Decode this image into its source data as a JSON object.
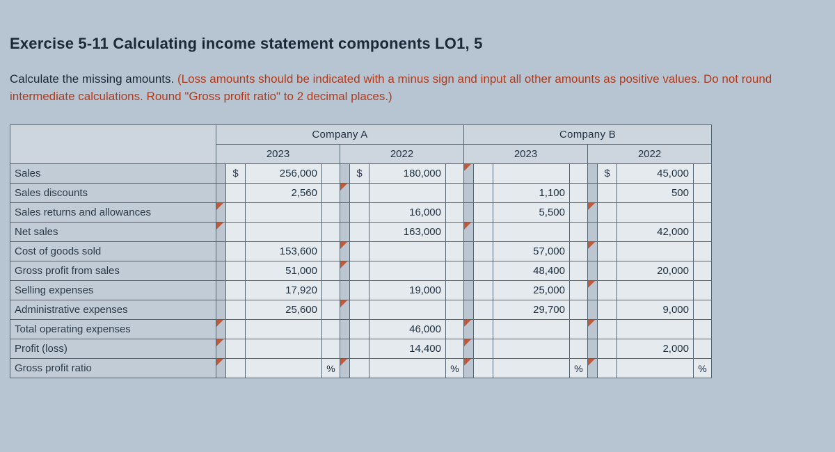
{
  "colors": {
    "page_bg": "#b7c4d2",
    "text": "#1a2838",
    "hint": "#b23a1a",
    "cell_bg": "#e5eaef",
    "row_bg": "#c2ccd6",
    "header_bg": "#cdd6df",
    "border": "#55636f",
    "triangle": "#c05a3a"
  },
  "title": "Exercise 5-11 Calculating income statement components LO1, 5",
  "instr_lead": "Calculate the missing amounts. ",
  "instr_hint": "(Loss amounts should be indicated with a minus sign and input all other amounts as positive values. Do not round intermediate calculations. Round \"Gross profit ratio\" to 2 decimal places.)",
  "headers": {
    "companyA": "Company A",
    "companyB": "Company B",
    "y2023": "2023",
    "y2022": "2022"
  },
  "row_labels": [
    "Sales",
    "Sales discounts",
    "Sales returns and allowances",
    "Net sales",
    "Cost of goods sold",
    "Gross profit from sales",
    "Selling expenses",
    "Administrative expenses",
    "Total operating expenses",
    "Profit (loss)",
    "Gross profit ratio"
  ],
  "currency_symbol": "$",
  "percent_symbol": "%",
  "table": {
    "A2023": {
      "rows": [
        {
          "tri": false,
          "sym": "$",
          "val": "256,000"
        },
        {
          "tri": false,
          "sym": "",
          "val": "2,560"
        },
        {
          "tri": true,
          "sym": "",
          "val": ""
        },
        {
          "tri": true,
          "sym": "",
          "val": ""
        },
        {
          "tri": false,
          "sym": "",
          "val": "153,600"
        },
        {
          "tri": false,
          "sym": "",
          "val": "51,000"
        },
        {
          "tri": false,
          "sym": "",
          "val": "17,920"
        },
        {
          "tri": false,
          "sym": "",
          "val": "25,600"
        },
        {
          "tri": true,
          "sym": "",
          "val": ""
        },
        {
          "tri": true,
          "sym": "",
          "val": ""
        },
        {
          "tri": true,
          "sym": "",
          "val": "",
          "pct": "%"
        }
      ]
    },
    "A2022": {
      "rows": [
        {
          "tri": false,
          "sym": "$",
          "val": "180,000"
        },
        {
          "tri": true,
          "sym": "",
          "val": ""
        },
        {
          "tri": false,
          "sym": "",
          "val": "16,000"
        },
        {
          "tri": false,
          "sym": "",
          "val": "163,000"
        },
        {
          "tri": true,
          "sym": "",
          "val": ""
        },
        {
          "tri": true,
          "sym": "",
          "val": ""
        },
        {
          "tri": false,
          "sym": "",
          "val": "19,000"
        },
        {
          "tri": true,
          "sym": "",
          "val": ""
        },
        {
          "tri": false,
          "sym": "",
          "val": "46,000"
        },
        {
          "tri": false,
          "sym": "",
          "val": "14,400"
        },
        {
          "tri": true,
          "sym": "",
          "val": "",
          "pct": "%"
        }
      ]
    },
    "B2023": {
      "rows": [
        {
          "tri": true,
          "sym": "",
          "val": ""
        },
        {
          "tri": false,
          "sym": "",
          "val": "1,100"
        },
        {
          "tri": false,
          "sym": "",
          "val": "5,500"
        },
        {
          "tri": true,
          "sym": "",
          "val": ""
        },
        {
          "tri": false,
          "sym": "",
          "val": "57,000"
        },
        {
          "tri": false,
          "sym": "",
          "val": "48,400"
        },
        {
          "tri": false,
          "sym": "",
          "val": "25,000"
        },
        {
          "tri": false,
          "sym": "",
          "val": "29,700"
        },
        {
          "tri": true,
          "sym": "",
          "val": ""
        },
        {
          "tri": true,
          "sym": "",
          "val": ""
        },
        {
          "tri": true,
          "sym": "",
          "val": "",
          "pct": "%"
        }
      ]
    },
    "B2022": {
      "rows": [
        {
          "tri": false,
          "sym": "$",
          "val": "45,000"
        },
        {
          "tri": false,
          "sym": "",
          "val": "500"
        },
        {
          "tri": true,
          "sym": "",
          "val": ""
        },
        {
          "tri": false,
          "sym": "",
          "val": "42,000"
        },
        {
          "tri": true,
          "sym": "",
          "val": ""
        },
        {
          "tri": false,
          "sym": "",
          "val": "20,000"
        },
        {
          "tri": true,
          "sym": "",
          "val": ""
        },
        {
          "tri": false,
          "sym": "",
          "val": "9,000"
        },
        {
          "tri": true,
          "sym": "",
          "val": ""
        },
        {
          "tri": false,
          "sym": "",
          "val": "2,000"
        },
        {
          "tri": true,
          "sym": "",
          "val": "",
          "pct": "%"
        }
      ]
    }
  }
}
